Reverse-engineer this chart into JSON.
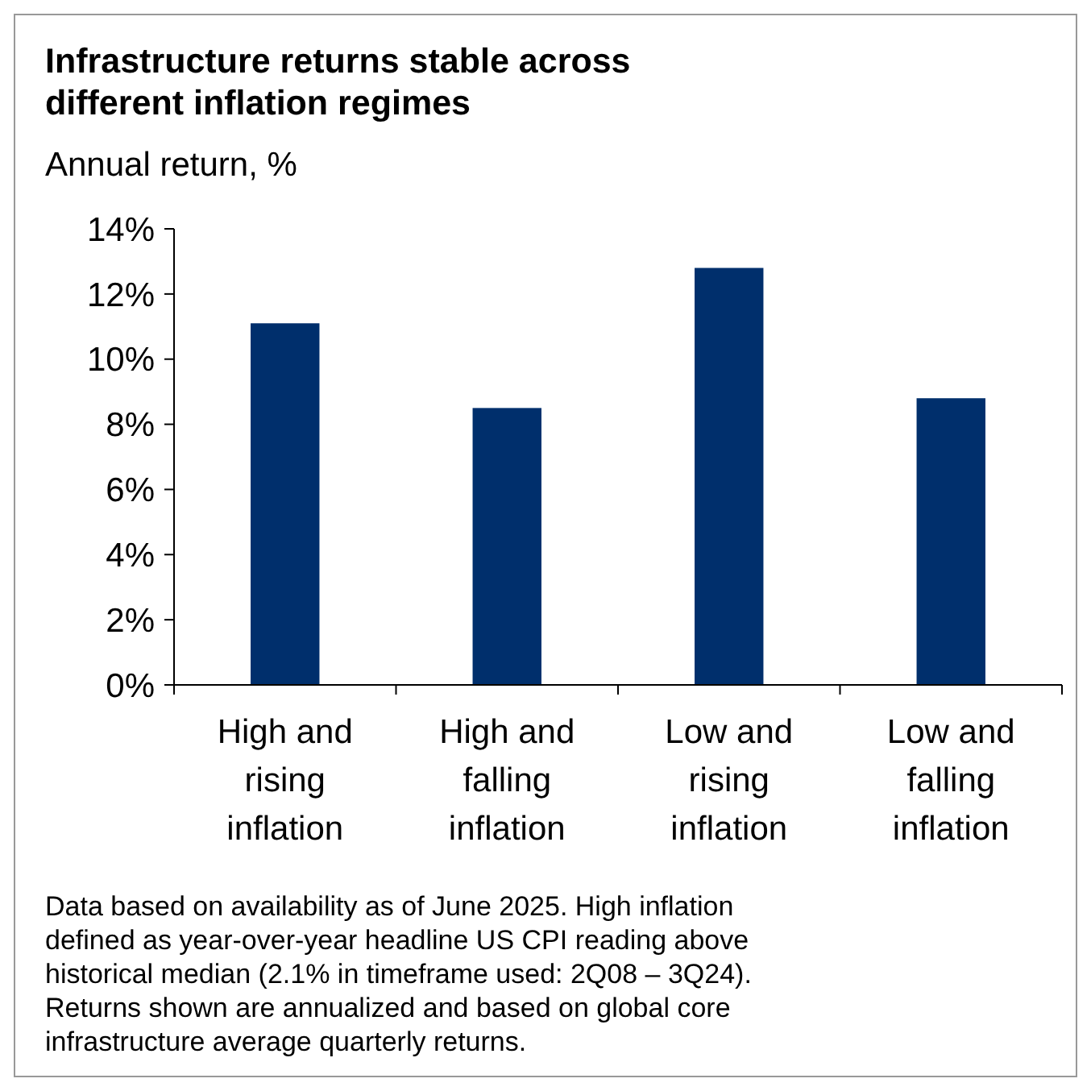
{
  "chart_data": {
    "type": "bar",
    "title": "Infrastructure returns stable across different inflation regimes",
    "subtitle": "Annual return, %",
    "categories": [
      "High and rising inflation",
      "High and falling inflation",
      "Low and rising inflation",
      "Low and falling inflation"
    ],
    "values": [
      11.1,
      8.5,
      12.8,
      8.8
    ],
    "color": "#002f6c",
    "ylim": [
      0,
      14
    ],
    "yticks": [
      {
        "value": 0,
        "label": "0%"
      },
      {
        "value": 2,
        "label": "2%"
      },
      {
        "value": 4,
        "label": "4%"
      },
      {
        "value": 6,
        "label": "6%"
      },
      {
        "value": 8,
        "label": "8%"
      },
      {
        "value": 10,
        "label": "10%"
      },
      {
        "value": 12,
        "label": "12%"
      },
      {
        "value": 14,
        "label": "14%"
      }
    ],
    "grid": false,
    "annotations": [
      "Data based on availability as of June 2025. High inflation defined as year-over-year headline US CPI reading above historical median (2.1% in timeframe used: 2Q08 – 3Q24). Returns shown are annualized and based on global core infrastructure average quarterly returns."
    ]
  }
}
